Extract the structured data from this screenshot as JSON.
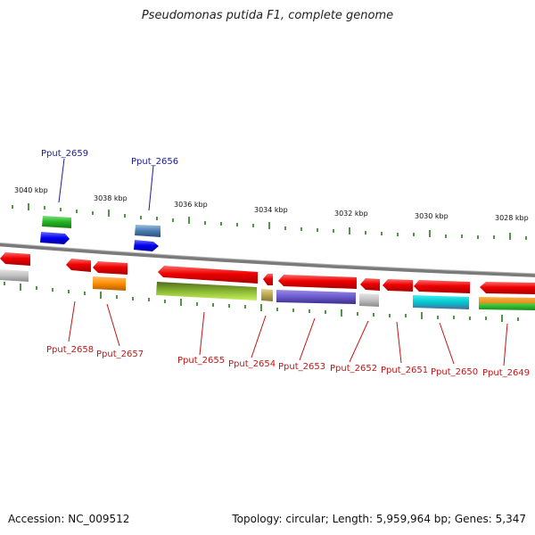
{
  "title": "Pseudomonas putida F1, complete genome",
  "accession": "Accession: NC_009512",
  "stats": "Topology: circular; Length: 5,959,964 bp; Genes: 5,347",
  "scale": [
    {
      "label": "3040 kbp"
    },
    {
      "label": "3038 kbp"
    },
    {
      "label": "3036 kbp"
    },
    {
      "label": "3034 kbp"
    },
    {
      "label": "3032 kbp"
    },
    {
      "label": "3030 kbp"
    },
    {
      "label": "3028 kbp"
    }
  ],
  "gene_labels_top": [
    {
      "name": "Pput_2659"
    },
    {
      "name": "Pput_2656"
    }
  ],
  "gene_labels_bottom": [
    {
      "name": "Pput_2658"
    },
    {
      "name": "Pput_2657"
    },
    {
      "name": "Pput_2655"
    },
    {
      "name": "Pput_2654"
    },
    {
      "name": "Pput_2653"
    },
    {
      "name": "Pput_2652"
    },
    {
      "name": "Pput_2651"
    },
    {
      "name": "Pput_2650"
    },
    {
      "name": "Pput_2649"
    }
  ],
  "colors": {
    "top_label": "#1a1aa0",
    "bottom_label": "#c41414",
    "tick": "#2a7a1a",
    "backbone": "#7a7a7a"
  }
}
